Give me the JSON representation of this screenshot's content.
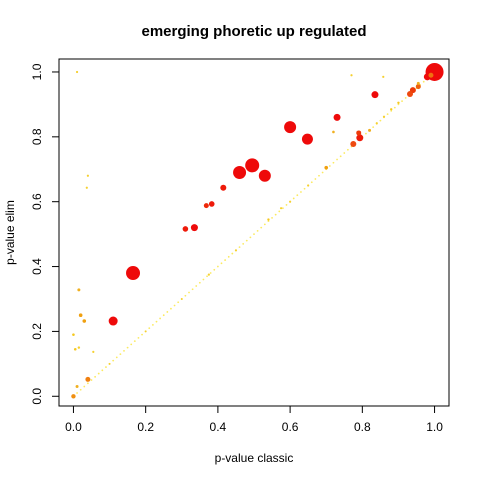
{
  "chart_data": {
    "type": "scatter",
    "title": "emerging phoretic up regulated",
    "xlabel": "p-value classic",
    "ylabel": "p-value elim",
    "xlim": [
      -0.04,
      1.04
    ],
    "ylim": [
      -0.03,
      1.04
    ],
    "xticks": [
      "0.0",
      "0.2",
      "0.4",
      "0.6",
      "0.8",
      "1.0"
    ],
    "yticks": [
      "0.0",
      "0.2",
      "0.4",
      "0.6",
      "0.8",
      "1.0"
    ],
    "grid": false,
    "points": [
      {
        "x": 1.0,
        "y": 1.0,
        "size": 9,
        "color": "#ee0a0a"
      },
      {
        "x": 0.165,
        "y": 0.38,
        "size": 7,
        "color": "#ee0a0a"
      },
      {
        "x": 0.495,
        "y": 0.712,
        "size": 7,
        "color": "#ee0a0a"
      },
      {
        "x": 0.46,
        "y": 0.69,
        "size": 6.5,
        "color": "#ee0a0a"
      },
      {
        "x": 0.53,
        "y": 0.68,
        "size": 6,
        "color": "#ee0a0a"
      },
      {
        "x": 0.6,
        "y": 0.83,
        "size": 6,
        "color": "#ee0a0a"
      },
      {
        "x": 0.648,
        "y": 0.793,
        "size": 5.5,
        "color": "#ee0a0a"
      },
      {
        "x": 0.11,
        "y": 0.232,
        "size": 4.5,
        "color": "#ee0a0a"
      },
      {
        "x": 0.835,
        "y": 0.93,
        "size": 3.5,
        "color": "#ee0a0a"
      },
      {
        "x": 0.73,
        "y": 0.86,
        "size": 3.5,
        "color": "#ee0a0a"
      },
      {
        "x": 0.98,
        "y": 0.985,
        "size": 3.5,
        "color": "#ee0a0a"
      },
      {
        "x": 0.335,
        "y": 0.52,
        "size": 3.5,
        "color": "#ee0a0a"
      },
      {
        "x": 0.31,
        "y": 0.516,
        "size": 2.8,
        "color": "#ee1a0a"
      },
      {
        "x": 0.415,
        "y": 0.643,
        "size": 3,
        "color": "#ee1a0a"
      },
      {
        "x": 0.383,
        "y": 0.593,
        "size": 2.8,
        "color": "#ee1a0a"
      },
      {
        "x": 0.368,
        "y": 0.588,
        "size": 2.5,
        "color": "#ee2a0a"
      },
      {
        "x": 0.793,
        "y": 0.797,
        "size": 3.5,
        "color": "#ee1a0a"
      },
      {
        "x": 0.79,
        "y": 0.812,
        "size": 2.5,
        "color": "#ee3a0a"
      },
      {
        "x": 0.775,
        "y": 0.778,
        "size": 3,
        "color": "#ee4a10"
      },
      {
        "x": 0.94,
        "y": 0.944,
        "size": 3,
        "color": "#ee3a0a"
      },
      {
        "x": 0.932,
        "y": 0.932,
        "size": 3,
        "color": "#ee4a10"
      },
      {
        "x": 0.955,
        "y": 0.955,
        "size": 2.5,
        "color": "#ee6010"
      },
      {
        "x": 0.99,
        "y": 0.99,
        "size": 2.5,
        "color": "#f07010"
      },
      {
        "x": 0.04,
        "y": 0.052,
        "size": 2.5,
        "color": "#f08010"
      },
      {
        "x": 0.0,
        "y": 0.0,
        "size": 2.2,
        "color": "#f09010"
      },
      {
        "x": 0.02,
        "y": 0.25,
        "size": 1.8,
        "color": "#f0a010"
      },
      {
        "x": 0.03,
        "y": 0.232,
        "size": 1.8,
        "color": "#f0a010"
      },
      {
        "x": 0.015,
        "y": 0.328,
        "size": 1.5,
        "color": "#f0b020"
      },
      {
        "x": 0.0,
        "y": 0.19,
        "size": 1.3,
        "color": "#f5c820"
      },
      {
        "x": 0.005,
        "y": 0.145,
        "size": 1.3,
        "color": "#f5c820"
      },
      {
        "x": 0.015,
        "y": 0.15,
        "size": 1.2,
        "color": "#f5d030"
      },
      {
        "x": 0.01,
        "y": 0.03,
        "size": 1.5,
        "color": "#f0b020"
      },
      {
        "x": 0.055,
        "y": 0.137,
        "size": 1.1,
        "color": "#f5d030"
      },
      {
        "x": 0.04,
        "y": 0.68,
        "size": 1.1,
        "color": "#f5d030"
      },
      {
        "x": 0.037,
        "y": 0.643,
        "size": 1.1,
        "color": "#f5d030"
      },
      {
        "x": 0.01,
        "y": 1.0,
        "size": 1.1,
        "color": "#f5d030"
      },
      {
        "x": 0.72,
        "y": 0.815,
        "size": 1.3,
        "color": "#f0b020"
      },
      {
        "x": 0.7,
        "y": 0.705,
        "size": 1.8,
        "color": "#f0a010"
      },
      {
        "x": 0.77,
        "y": 0.99,
        "size": 1.1,
        "color": "#f5d030"
      },
      {
        "x": 0.858,
        "y": 0.985,
        "size": 1.1,
        "color": "#f5d030"
      },
      {
        "x": 0.82,
        "y": 0.82,
        "size": 1.5,
        "color": "#f0b020"
      },
      {
        "x": 0.54,
        "y": 0.545,
        "size": 1.2,
        "color": "#f5c820"
      },
      {
        "x": 0.575,
        "y": 0.58,
        "size": 1.1,
        "color": "#f5d030"
      },
      {
        "x": 0.955,
        "y": 0.965,
        "size": 1.5,
        "color": "#f0b020"
      },
      {
        "x": 0.9,
        "y": 0.905,
        "size": 1.2,
        "color": "#f5c820"
      },
      {
        "x": 0.88,
        "y": 0.885,
        "size": 1.2,
        "color": "#f5c820"
      },
      {
        "x": 0.86,
        "y": 0.862,
        "size": 1.1,
        "color": "#f5d030"
      },
      {
        "x": 0.84,
        "y": 0.842,
        "size": 1.1,
        "color": "#f5d030"
      },
      {
        "x": 0.65,
        "y": 0.65,
        "size": 1.1,
        "color": "#f5d030"
      },
      {
        "x": 0.6,
        "y": 0.6,
        "size": 1.1,
        "color": "#f5d030"
      },
      {
        "x": 0.45,
        "y": 0.45,
        "size": 1.1,
        "color": "#f5d030"
      },
      {
        "x": 0.375,
        "y": 0.375,
        "size": 1.1,
        "color": "#f5d030"
      },
      {
        "x": 0.3,
        "y": 0.3,
        "size": 1.0,
        "color": "#f5d030"
      },
      {
        "x": 0.2,
        "y": 0.2,
        "size": 1.0,
        "color": "#f5d030"
      },
      {
        "x": 0.1,
        "y": 0.1,
        "size": 1.0,
        "color": "#f5d030"
      }
    ],
    "diagonal_color": "#fbea60"
  }
}
